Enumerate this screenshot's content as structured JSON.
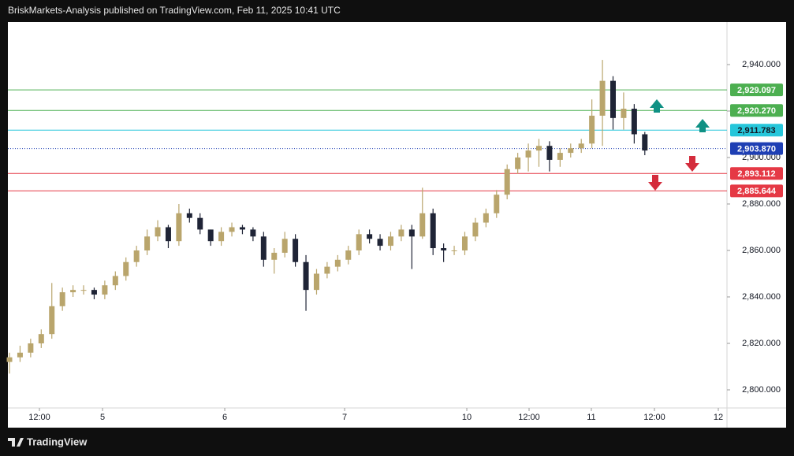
{
  "header": {
    "text": "BriskMarkets-Analysis published on TradingView.com, Feb 11, 2025 10:41 UTC"
  },
  "footer": {
    "brand": "TradingView"
  },
  "chart_data": {
    "type": "candlestick",
    "up_color": "#b9a56c",
    "down_color": "#1f2436",
    "open": [
      2812,
      2814,
      2816,
      2820,
      2824,
      2836,
      2842,
      2843,
      2843,
      2841,
      2845,
      2849,
      2855,
      2860,
      2866,
      2870,
      2864,
      2876,
      2874,
      2869,
      2864,
      2868,
      2870,
      2869,
      2866,
      2856,
      2859,
      2865,
      2855,
      2843,
      2850,
      2853,
      2856,
      2860,
      2867,
      2865,
      2862,
      2866,
      2869,
      2866,
      2876,
      2861,
      2860,
      2860,
      2866,
      2872,
      2876,
      2884,
      2895,
      2900,
      2903,
      2905,
      2899,
      2902,
      2904,
      2906,
      2918,
      2933,
      2917,
      2921,
      2910
    ],
    "high": [
      2816,
      2819,
      2822,
      2826,
      2846,
      2844,
      2845,
      2845,
      2844,
      2847,
      2851,
      2857,
      2862,
      2869,
      2873,
      2871,
      2880,
      2878,
      2876,
      2869,
      2870,
      2872,
      2871,
      2870,
      2868,
      2861,
      2868,
      2867,
      2858,
      2852,
      2855,
      2858,
      2862,
      2869,
      2869,
      2867,
      2868,
      2871,
      2871,
      2887,
      2878,
      2863,
      2862,
      2868,
      2874,
      2878,
      2886,
      2897,
      2902,
      2906,
      2908,
      2907,
      2904,
      2906,
      2908,
      2925,
      2942,
      2935,
      2928,
      2923,
      2911
    ],
    "low": [
      2807,
      2812,
      2814,
      2818,
      2822,
      2834,
      2840,
      2841,
      2839,
      2839,
      2843,
      2847,
      2853,
      2858,
      2864,
      2861,
      2862,
      2872,
      2867,
      2862,
      2862,
      2866,
      2867,
      2864,
      2853,
      2850,
      2857,
      2853,
      2834,
      2841,
      2848,
      2851,
      2854,
      2858,
      2863,
      2860,
      2860,
      2864,
      2852,
      2865,
      2858,
      2855,
      2858,
      2858,
      2864,
      2870,
      2874,
      2882,
      2893,
      2894,
      2896,
      2894,
      2896,
      2900,
      2902,
      2904,
      2905,
      2912,
      2912,
      2906,
      2901
    ],
    "close": [
      2814,
      2816,
      2820,
      2824,
      2836,
      2842,
      2843,
      2843,
      2841,
      2845,
      2849,
      2855,
      2860,
      2866,
      2870,
      2864,
      2876,
      2874,
      2869,
      2864,
      2868,
      2870,
      2869,
      2866,
      2856,
      2859,
      2865,
      2855,
      2843,
      2850,
      2853,
      2856,
      2860,
      2867,
      2865,
      2862,
      2866,
      2869,
      2866,
      2876,
      2861,
      2860,
      2860,
      2866,
      2872,
      2876,
      2884,
      2895,
      2900,
      2903,
      2905,
      2899,
      2902,
      2904,
      2906,
      2918,
      2933,
      2917,
      2921,
      2910,
      2903
    ],
    "xlim": [
      -0.15,
      67.76
    ],
    "xticks": [
      {
        "value": 2.83,
        "label": "12:00"
      },
      {
        "value": 8.79,
        "label": "5"
      },
      {
        "value": 20.33,
        "label": "6"
      },
      {
        "value": 31.65,
        "label": "7"
      },
      {
        "value": 43.19,
        "label": "10"
      },
      {
        "value": 49.07,
        "label": "12:00"
      },
      {
        "value": 54.95,
        "label": "11"
      },
      {
        "value": 60.91,
        "label": "12:00"
      },
      {
        "value": 66.94,
        "label": "12"
      }
    ],
    "ylim": [
      2792.2,
      2958.3
    ],
    "yticks": [
      {
        "value": 2800,
        "label": "2,800.000"
      },
      {
        "value": 2820,
        "label": "2,820.000"
      },
      {
        "value": 2840,
        "label": "2,840.000"
      },
      {
        "value": 2860,
        "label": "2,860.000"
      },
      {
        "value": 2880,
        "label": "2,880.000"
      },
      {
        "value": 2900,
        "label": "2,900.000"
      },
      {
        "value": 2920,
        "label": "2,920.000"
      },
      {
        "value": 2940,
        "label": "2,940.000"
      }
    ],
    "levels": [
      {
        "value": 2929.097,
        "label": "2,929.097",
        "color": "#4caf50",
        "style": "solid"
      },
      {
        "value": 2920.27,
        "label": "2,920.270",
        "color": "#4caf50",
        "style": "solid"
      },
      {
        "value": 2911.783,
        "label": "2,911.783",
        "color": "#26c6da",
        "style": "solid"
      },
      {
        "value": 2903.87,
        "label": "2,903.870",
        "color": "#1e3fb4",
        "style": "dotted"
      },
      {
        "value": 2893.112,
        "label": "2,893.112",
        "color": "#e53945",
        "style": "solid"
      },
      {
        "value": 2885.644,
        "label": "2,885.644",
        "color": "#e53945",
        "style": "solid"
      }
    ]
  }
}
